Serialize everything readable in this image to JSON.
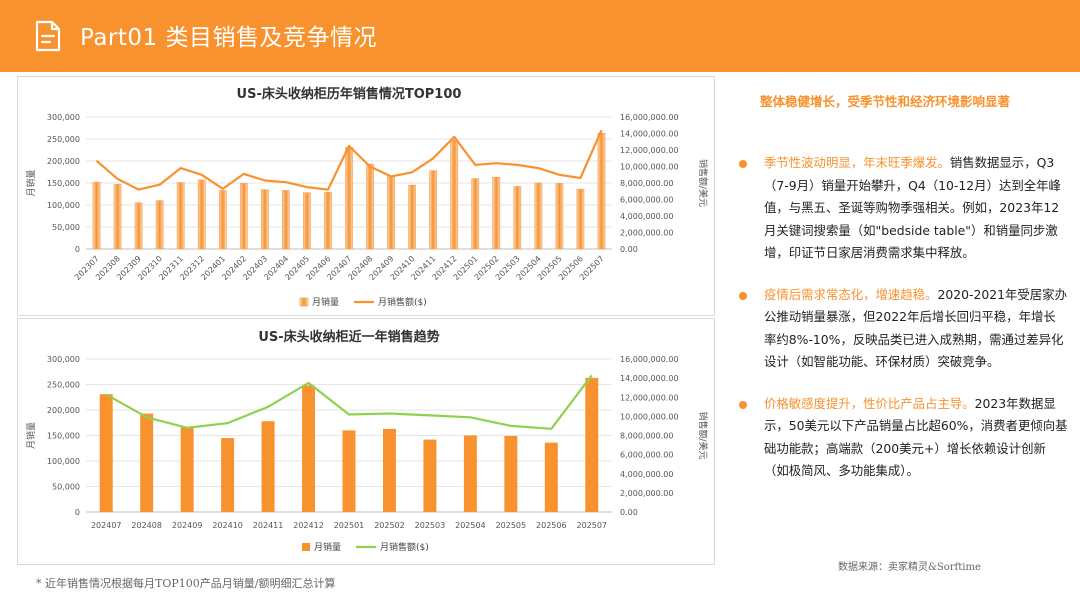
{
  "header": {
    "title": "Part01 类目销售及竞争情况",
    "icon": "document-icon"
  },
  "colors": {
    "accent": "#F7922F",
    "bar": "#F7922F",
    "line_top": "#F7922F",
    "line_bottom": "#8FD14F"
  },
  "chart_data": [
    {
      "type": "bar+line",
      "title": "US-床头收纳柜历年销售情况TOP100",
      "categories": [
        "202307",
        "202308",
        "202309",
        "202310",
        "202311",
        "202312",
        "202401",
        "202402",
        "202403",
        "202404",
        "202405",
        "202406",
        "202407",
        "202408",
        "202409",
        "202410",
        "202411",
        "202412",
        "202501",
        "202502",
        "202503",
        "202504",
        "202505",
        "202506",
        "202507"
      ],
      "series": [
        {
          "name": "月销量",
          "type": "bar",
          "axis": "left",
          "values": [
            152000,
            147000,
            105000,
            110000,
            151000,
            157000,
            133000,
            149000,
            135000,
            133000,
            128000,
            129000,
            231000,
            193000,
            166000,
            145000,
            178000,
            248000,
            160000,
            163000,
            142000,
            150000,
            149000,
            136000,
            263000
          ]
        },
        {
          "name": "月销售额($)",
          "type": "line",
          "axis": "right",
          "values": [
            10700000,
            8500000,
            7200000,
            7800000,
            9800000,
            9000000,
            7300000,
            9100000,
            8300000,
            8100000,
            7500000,
            7200000,
            12500000,
            10000000,
            8800000,
            9300000,
            11000000,
            13600000,
            10200000,
            10400000,
            10200000,
            9800000,
            9000000,
            8600000,
            14400000
          ]
        }
      ],
      "ylabel_left": "月销量",
      "ylabel_right": "销售额/美元",
      "yticks_left": [
        "0",
        "50,000",
        "100,000",
        "150,000",
        "200,000",
        "250,000",
        "300,000"
      ],
      "yticks_right": [
        "0.00",
        "2,000,000.00",
        "4,000,000.00",
        "6,000,000.00",
        "8,000,000.00",
        "10,000,000.00",
        "12,000,000.00",
        "14,000,000.00",
        "16,000,000.00"
      ],
      "ylim_left": [
        0,
        300000
      ],
      "ylim_right": [
        0,
        16000000
      ],
      "legend": [
        "月销量",
        "月销售额($)"
      ],
      "legend_position": "bottom"
    },
    {
      "type": "bar+line",
      "title": "US-床头收纳柜近一年销售趋势",
      "categories": [
        "202407",
        "202408",
        "202409",
        "202410",
        "202411",
        "202412",
        "202501",
        "202502",
        "202503",
        "202504",
        "202505",
        "202506",
        "202507"
      ],
      "series": [
        {
          "name": "月销量",
          "type": "bar",
          "axis": "left",
          "values": [
            231000,
            193000,
            166000,
            145000,
            178000,
            248000,
            160000,
            163000,
            142000,
            150000,
            149000,
            136000,
            263000
          ]
        },
        {
          "name": "月销售额($)",
          "type": "line",
          "axis": "right",
          "values": [
            12300000,
            9900000,
            8800000,
            9300000,
            11000000,
            13500000,
            10200000,
            10300000,
            10100000,
            9900000,
            9000000,
            8700000,
            14300000
          ]
        }
      ],
      "ylabel_left": "月销量",
      "ylabel_right": "销售额/美元",
      "yticks_left": [
        "0",
        "50,000",
        "100,000",
        "150,000",
        "200,000",
        "250,000",
        "300,000"
      ],
      "yticks_right": [
        "0.00",
        "2,000,000.00",
        "4,000,000.00",
        "6,000,000.00",
        "8,000,000.00",
        "10,000,000.00",
        "12,000,000.00",
        "14,000,000.00",
        "16,000,000.00"
      ],
      "ylim_left": [
        0,
        300000
      ],
      "ylim_right": [
        0,
        16000000
      ],
      "legend": [
        "月销量",
        "月销售额($)"
      ],
      "legend_position": "bottom"
    }
  ],
  "footnote": "* 近年销售情况根据每月TOP100产品月销量/额明细汇总计算",
  "headline": "整体稳健增长，受季节性和经济环境影响显著",
  "bullets": [
    {
      "lead": "季节性波动明显，年末旺季爆发。",
      "text": "销售数据显示，Q3（7-9月）销量开始攀升，Q4（10-12月）达到全年峰值，与黑五、圣诞等购物季强相关。例如，2023年12月关键词搜索量（如\"bedside table\"）和销量同步激增，印证节日家居消费需求集中释放。"
    },
    {
      "lead": "疫情后需求常态化，增速趋稳。",
      "text": "2020-2021年受居家办公推动销量暴涨，但2022年后增长回归平稳，年增长率约8%-10%，反映品类已进入成熟期，需通过差异化设计（如智能功能、环保材质）突破竞争。"
    },
    {
      "lead": "价格敏感度提升，性价比产品占主导。",
      "text": "2023年数据显示，50美元以下产品销量占比超60%，消费者更倾向基础功能款；高端款（200美元+）增长依赖设计创新（如极简风、多功能集成）。"
    }
  ],
  "source": "数据来源：卖家精灵&Sorftime"
}
